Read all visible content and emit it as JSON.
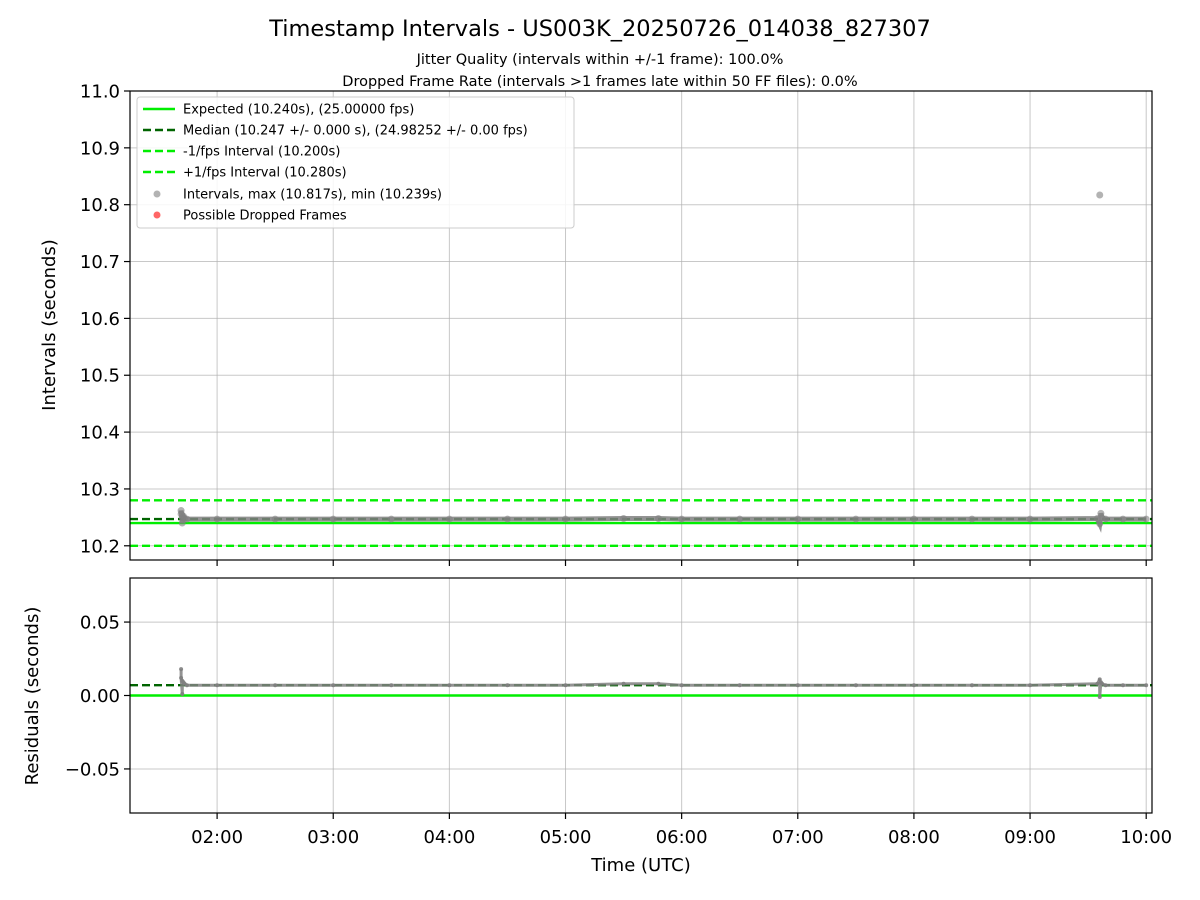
{
  "title": "Timestamp Intervals - US003K_20250726_014038_827307",
  "subtitle_1": "Jitter Quality (intervals within +/-1 frame): 100.0%",
  "subtitle_2": "Dropped Frame Rate (intervals >1 frames late within 50 FF files): 0.0%",
  "colors": {
    "expected": "#00ee00",
    "median": "#006400",
    "bounds": "#00ee00",
    "intervals": "#808080",
    "dropped": "#ff6666",
    "grid": "#b0b0b0"
  },
  "chart_data": [
    {
      "type": "line",
      "name": "intervals",
      "ylabel": "Intervals (seconds)",
      "ylim": [
        10.175,
        11.0
      ],
      "xlim_hours": [
        1.25,
        10.05
      ],
      "yticks": [
        "10.2",
        "10.3",
        "10.4",
        "10.5",
        "10.6",
        "10.7",
        "10.8",
        "10.9",
        "11.0"
      ],
      "ytick_values": [
        10.2,
        10.3,
        10.4,
        10.5,
        10.6,
        10.7,
        10.8,
        10.9,
        11.0
      ],
      "grid": true,
      "legend_position": "top-left",
      "hlines": [
        {
          "key": "expected",
          "y": 10.24,
          "style": "solid",
          "label": "Expected (10.240s), (25.00000 fps)"
        },
        {
          "key": "median",
          "y": 10.247,
          "style": "dashed",
          "label": "Median (10.247 +/- 0.000 s), (24.98252 +/- 0.00 fps)"
        },
        {
          "key": "lower",
          "y": 10.2,
          "style": "dashed",
          "label": "-1/fps Interval (10.200s)"
        },
        {
          "key": "upper",
          "y": 10.28,
          "style": "dashed",
          "label": "+1/fps Interval (10.280s)"
        }
      ],
      "series": [
        {
          "name": "Intervals, max (10.817s), min (10.239s)",
          "x_hours": [
            1.69,
            1.69,
            1.7,
            1.7,
            1.71,
            1.72,
            1.74,
            2.0,
            2.5,
            3.0,
            3.5,
            4.0,
            4.5,
            5.0,
            5.5,
            5.8,
            6.0,
            6.5,
            7.0,
            7.5,
            8.0,
            8.5,
            9.0,
            9.58,
            9.6,
            9.6,
            9.61,
            9.62,
            9.65,
            9.8,
            10.0
          ],
          "values": [
            10.256,
            10.262,
            10.24,
            10.25,
            10.252,
            10.248,
            10.247,
            10.247,
            10.247,
            10.247,
            10.247,
            10.247,
            10.247,
            10.247,
            10.248,
            10.248,
            10.247,
            10.247,
            10.247,
            10.247,
            10.247,
            10.247,
            10.247,
            10.248,
            10.817,
            10.239,
            10.257,
            10.249,
            10.247,
            10.247,
            10.247
          ]
        },
        {
          "name": "Possible Dropped Frames",
          "x_hours": [],
          "values": []
        }
      ]
    },
    {
      "type": "line",
      "name": "residuals",
      "xlabel": "Time (UTC)",
      "ylabel": "Residuals (seconds)",
      "ylim": [
        -0.08,
        0.08
      ],
      "xlim_hours": [
        1.25,
        10.05
      ],
      "yticks": [
        "−0.05",
        "0.00",
        "0.05"
      ],
      "ytick_values": [
        -0.05,
        0.0,
        0.05
      ],
      "xticks": [
        "02:00",
        "03:00",
        "04:00",
        "05:00",
        "06:00",
        "07:00",
        "08:00",
        "09:00",
        "10:00"
      ],
      "xtick_hours": [
        2,
        3,
        4,
        5,
        6,
        7,
        8,
        9,
        10
      ],
      "grid": true,
      "hlines": [
        {
          "key": "zero",
          "y": 0.0,
          "style": "solid"
        },
        {
          "key": "median_resid",
          "y": 0.007,
          "style": "dashed"
        }
      ],
      "series": [
        {
          "name": "residuals",
          "x_hours": [
            1.69,
            1.69,
            1.7,
            1.7,
            1.71,
            1.72,
            1.74,
            2.0,
            2.5,
            3.0,
            3.5,
            4.0,
            4.5,
            5.0,
            5.5,
            5.8,
            6.0,
            6.5,
            7.0,
            7.5,
            8.0,
            8.5,
            9.0,
            9.58,
            9.6,
            9.6,
            9.61,
            9.62,
            9.65,
            9.8,
            10.0
          ],
          "values": [
            0.018,
            0.012,
            0.001,
            0.01,
            0.009,
            0.008,
            0.007,
            0.007,
            0.007,
            0.007,
            0.007,
            0.007,
            0.007,
            0.007,
            0.008,
            0.008,
            0.007,
            0.007,
            0.007,
            0.007,
            0.007,
            0.007,
            0.007,
            0.008,
            0.011,
            -0.001,
            0.009,
            0.008,
            0.007,
            0.007,
            0.007
          ]
        }
      ]
    }
  ]
}
